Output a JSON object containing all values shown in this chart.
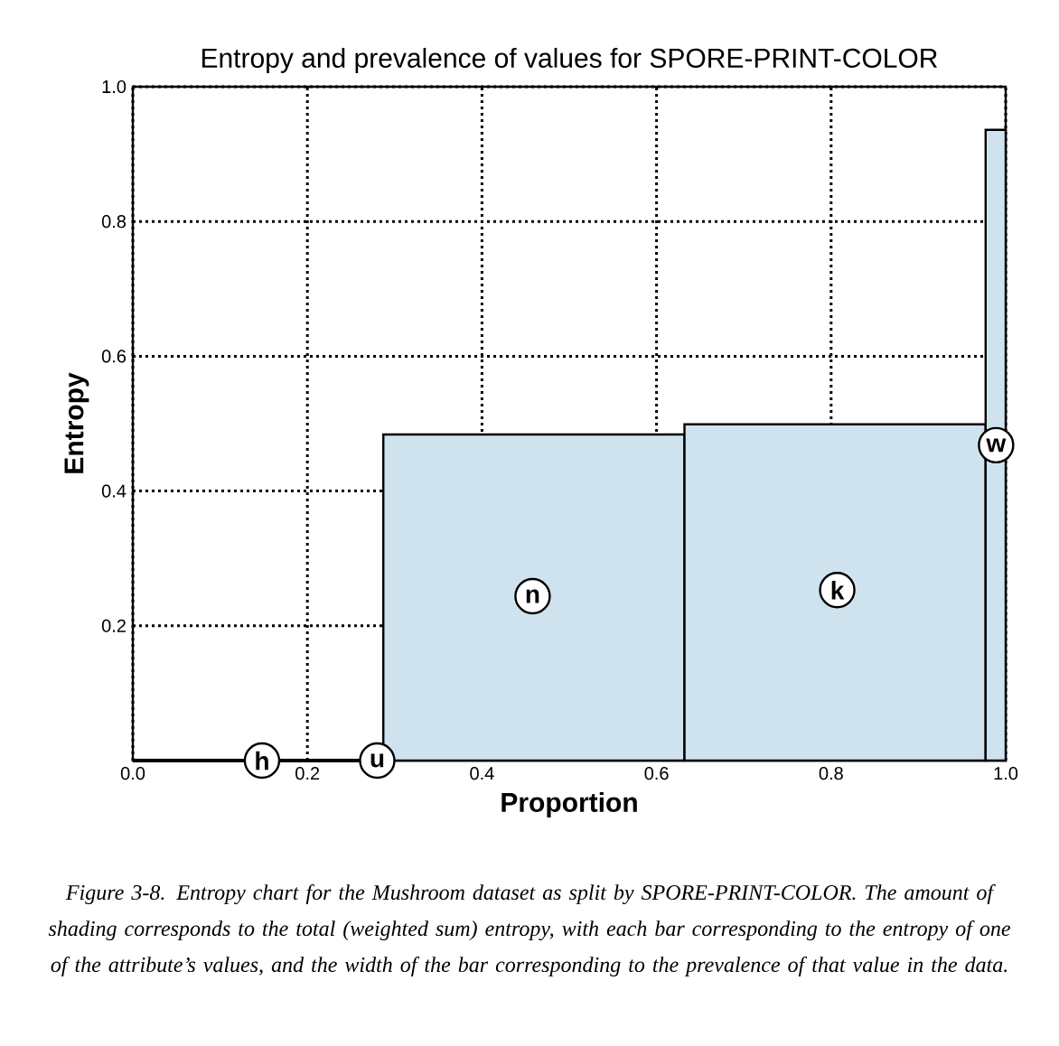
{
  "chart_data": {
    "type": "histogram",
    "title": "Entropy and prevalence of values for SPORE-PRINT-COLOR",
    "xlabel": "Proportion",
    "ylabel": "Entropy",
    "bins": [
      0,
      0.287,
      0.632,
      0.977,
      1.0
    ],
    "values": [
      0,
      0.484,
      0.499,
      0.936
    ],
    "colors": [
      "#000000",
      "#cfe3ee",
      "#cfe3ee",
      "#cfe3ee"
    ],
    "xlim": [
      0,
      1
    ],
    "ylim": [
      0,
      1
    ],
    "xticks": [
      {
        "value": 0,
        "label": "0.0"
      },
      0.2,
      0.4,
      0.6,
      0.8,
      {
        "value": 1,
        "label": "1.0"
      }
    ],
    "yticks": [
      0.2,
      0.4,
      0.6,
      0.8,
      {
        "value": 1,
        "label": "1.0"
      }
    ],
    "grid": true,
    "annotations": [
      {
        "text": "h",
        "x": 0.148,
        "y": 0
      },
      {
        "text": "u",
        "x": 0.28,
        "y": 0
      },
      {
        "text": "n",
        "x": 0.458,
        "y": 0.244
      },
      {
        "text": "k",
        "x": 0.807,
        "y": 0.253
      },
      {
        "text": "w",
        "x": 0.989,
        "y": 0.468
      },
      "*Figure 3-8. Entropy chart for the Mushroom dataset as split by SPORE-PRINT-COLOR. The amount of shading corresponds to the total (weighted sum) entropy, with each bar corresponding to the entropy of one of the attribute’s values, and the width of the bar corresponding to the prevalence of that value in the data.*"
    ]
  }
}
